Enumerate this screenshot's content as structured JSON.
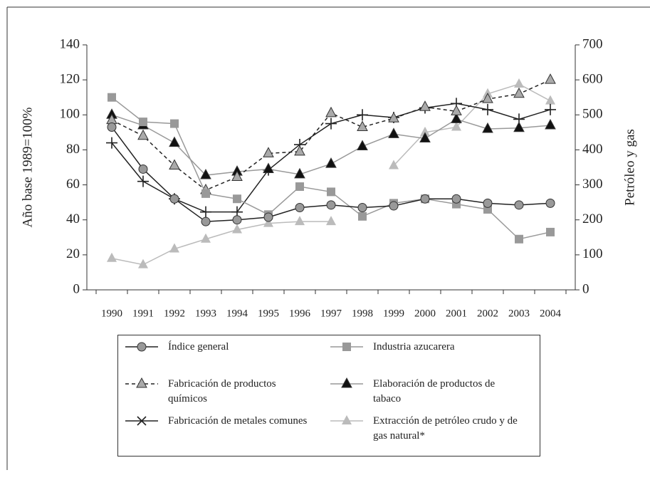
{
  "chart_data": {
    "type": "line",
    "y_label": "Año base 1989=100%",
    "y2_label": "Petróleo y gas",
    "categories": [
      "1990",
      "1991",
      "1992",
      "1993",
      "1994",
      "1995",
      "1996",
      "1997",
      "1998",
      "1999",
      "2000",
      "2001",
      "2002",
      "2003",
      "2004"
    ],
    "ylim": [
      0,
      140
    ],
    "yticks": [
      0,
      20,
      40,
      60,
      80,
      100,
      120,
      140
    ],
    "y2lim": [
      0,
      700
    ],
    "y2ticks": [
      0,
      100,
      200,
      300,
      400,
      500,
      600,
      700
    ],
    "series": [
      {
        "name": "Índice general",
        "color": "#222222",
        "marker": "circle",
        "marker_color": "#999999",
        "values": [
          93,
          69,
          52,
          39,
          40,
          41.5,
          47,
          48.5,
          47,
          48,
          52,
          52,
          49.5,
          48.5,
          49.5
        ]
      },
      {
        "name": "Industria azucarera",
        "color": "#999999",
        "marker": "square",
        "marker_color": "#999999",
        "values": [
          110,
          96,
          95,
          55,
          52,
          43,
          59,
          56,
          42,
          49.5,
          52,
          49,
          46,
          29,
          33
        ]
      },
      {
        "name": "Fabricación de productos químicos",
        "color": "#222222",
        "dash": true,
        "marker": "triangle",
        "marker_color": "#aaaaaa",
        "values": [
          97,
          88,
          71,
          57,
          64.5,
          78,
          79,
          101,
          93,
          98,
          104.5,
          102,
          109,
          112,
          120
        ]
      },
      {
        "name": "Elaboración de productos de tabaco",
        "color": "#999999",
        "marker": "triangle",
        "marker_color": "#111111",
        "values": [
          100,
          94,
          84,
          65.5,
          67.5,
          69,
          66,
          72,
          82,
          89,
          86.5,
          97.5,
          92,
          92.5,
          94
        ]
      },
      {
        "name": "Fabricación de metales comunes",
        "color": "#222222",
        "marker": "plus",
        "marker_color": "#222222",
        "values": [
          84,
          62,
          52,
          44.5,
          44.5,
          68.5,
          83,
          95,
          100,
          98.5,
          104,
          106.5,
          103,
          97.5,
          103
        ]
      },
      {
        "name": "Extracción de petróleo crudo y de gas natural*",
        "color": "#bbbbbb",
        "marker": "triangle",
        "marker_color": "#bbbbbb",
        "axis": "y2",
        "values": [
          90,
          72,
          117,
          145,
          172,
          190,
          195,
          195,
          null,
          355,
          450,
          465,
          560,
          588,
          540
        ]
      }
    ]
  }
}
